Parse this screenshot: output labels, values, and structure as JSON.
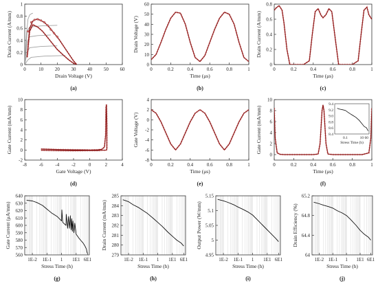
{
  "figure": {
    "panel_labels": [
      "(a)",
      "(b)",
      "(c)",
      "(d)",
      "(e)",
      "(f)",
      "(g)",
      "(h)",
      "(i)",
      "(j)"
    ]
  },
  "colors": {
    "measured": "#8b1a1a",
    "simulated_dots": "#e05a5a",
    "gray_curves": "#a0a0a0",
    "grid": "#d8d8d8"
  },
  "chart_data": [
    {
      "id": "a",
      "type": "line",
      "xlabel": "Drain Voltage (V)",
      "ylabel": "Drain Current (A/mm)",
      "xlim": [
        0,
        60
      ],
      "ylim": [
        0,
        1.0
      ],
      "xticks": [
        0,
        10,
        20,
        30,
        40,
        50,
        60
      ],
      "yticks": [
        0,
        0.2,
        0.4,
        0.6,
        0.8,
        1.0
      ],
      "grid": false,
      "series": [
        {
          "style": "gray",
          "x": [
            0,
            1.5,
            3,
            10,
            20
          ],
          "y": [
            0,
            0.55,
            0.62,
            0.64,
            0.65
          ]
        },
        {
          "style": "gray",
          "x": [
            0,
            1.5,
            3,
            8,
            16
          ],
          "y": [
            0,
            0.38,
            0.46,
            0.48,
            0.49
          ]
        },
        {
          "style": "gray",
          "x": [
            0,
            1.5,
            3,
            10,
            20
          ],
          "y": [
            0,
            0.2,
            0.28,
            0.3,
            0.31
          ]
        },
        {
          "style": "gray",
          "x": [
            0,
            2,
            4,
            12,
            25
          ],
          "y": [
            0,
            0.08,
            0.12,
            0.14,
            0.15
          ]
        },
        {
          "style": "gray",
          "x": [
            0,
            1,
            2,
            3,
            4,
            5
          ],
          "y": [
            0,
            0.5,
            0.75,
            0.82,
            0.84,
            0.85
          ]
        },
        {
          "style": "measured",
          "x": [
            1.5,
            3,
            5,
            7,
            9,
            12,
            15,
            18,
            21,
            24,
            27,
            30,
            32,
            30,
            27,
            24,
            20,
            17,
            14,
            11,
            8,
            5,
            3,
            1.5
          ],
          "y": [
            0.12,
            0.6,
            0.72,
            0.75,
            0.74,
            0.7,
            0.62,
            0.52,
            0.42,
            0.3,
            0.18,
            0.06,
            0.0,
            0.02,
            0.08,
            0.15,
            0.25,
            0.35,
            0.45,
            0.55,
            0.62,
            0.66,
            0.55,
            0.12
          ]
        },
        {
          "style": "dots",
          "x": [
            2,
            4,
            6,
            8,
            10,
            12,
            14,
            16,
            18,
            20
          ],
          "y": [
            0.55,
            0.7,
            0.74,
            0.75,
            0.73,
            0.7,
            0.65,
            0.58,
            0.52,
            0.46
          ]
        }
      ]
    },
    {
      "id": "b",
      "type": "line",
      "xlabel": "Time (μs)",
      "ylabel": "Drain Voltage (V)",
      "xlim": [
        0,
        1.0
      ],
      "ylim": [
        0,
        60
      ],
      "xticks": [
        0,
        0.2,
        0.4,
        0.6,
        0.8,
        1.0
      ],
      "yticks": [
        0,
        10,
        20,
        30,
        40,
        50,
        60
      ],
      "grid": false,
      "series": [
        {
          "style": "measured",
          "x": [
            0,
            0.05,
            0.1,
            0.15,
            0.2,
            0.25,
            0.3,
            0.35,
            0.4,
            0.45,
            0.5,
            0.55,
            0.6,
            0.65,
            0.7,
            0.75,
            0.8,
            0.85,
            0.9,
            0.95,
            1.0
          ],
          "y": [
            5,
            10,
            22,
            35,
            46,
            52,
            51,
            40,
            22,
            7,
            3,
            9,
            22,
            35,
            46,
            52,
            50,
            40,
            22,
            7,
            3
          ]
        }
      ]
    },
    {
      "id": "c",
      "type": "line",
      "xlabel": "Time (μs)",
      "ylabel": "Drain Current (A/mm)",
      "xlim": [
        0,
        1.0
      ],
      "ylim": [
        0,
        0.8
      ],
      "xticks": [
        0,
        0.2,
        0.4,
        0.6,
        0.8,
        1.0
      ],
      "yticks": [
        0,
        0.2,
        0.4,
        0.6,
        0.8
      ],
      "grid": false,
      "series": [
        {
          "style": "measured",
          "x": [
            0,
            0.02,
            0.05,
            0.08,
            0.1,
            0.13,
            0.16,
            0.2,
            0.3,
            0.36,
            0.39,
            0.42,
            0.45,
            0.48,
            0.5,
            0.53,
            0.56,
            0.59,
            0.62,
            0.66,
            0.8,
            0.86,
            0.89,
            0.92,
            0.95,
            0.97,
            1.0
          ],
          "y": [
            0.72,
            0.75,
            0.78,
            0.72,
            0.55,
            0.2,
            0.0,
            0.0,
            0.0,
            0.05,
            0.4,
            0.7,
            0.74,
            0.65,
            0.62,
            0.66,
            0.74,
            0.7,
            0.4,
            0.0,
            0.0,
            0.05,
            0.4,
            0.72,
            0.76,
            0.66,
            0.6
          ]
        }
      ]
    },
    {
      "id": "d",
      "type": "line",
      "xlabel": "Gate Voltage (V)",
      "ylabel": "Gate Current (mA/mm)",
      "xlim": [
        -8,
        4
      ],
      "ylim": [
        -2,
        10
      ],
      "xticks": [
        -8,
        -6,
        -4,
        -2,
        0,
        2,
        4
      ],
      "yticks": [
        -2,
        0,
        2,
        4,
        6,
        8,
        10
      ],
      "grid": false,
      "series": [
        {
          "style": "measured",
          "x": [
            -6,
            -4,
            -2,
            0,
            1,
            1.5,
            1.8,
            1.95,
            2.0,
            2.05,
            2.1,
            2.1,
            2.05,
            1.9,
            1.5,
            1.0,
            0,
            -2,
            -4,
            -6
          ],
          "y": [
            0.2,
            0.1,
            0.05,
            0.0,
            0.05,
            0.15,
            0.6,
            3,
            8.5,
            9,
            5,
            0.2,
            0.0,
            -0.05,
            -0.05,
            -0.1,
            -0.1,
            -0.15,
            -0.1,
            -0.05
          ]
        }
      ]
    },
    {
      "id": "e",
      "type": "line",
      "xlabel": "Time (μs)",
      "ylabel": "Gate Voltage (V)",
      "xlim": [
        0,
        1.0
      ],
      "ylim": [
        -8,
        4
      ],
      "xticks": [
        0,
        0.2,
        0.4,
        0.6,
        0.8,
        1.0
      ],
      "yticks": [
        -8,
        -6,
        -4,
        -2,
        0,
        2,
        4
      ],
      "grid": false,
      "series": [
        {
          "style": "measured",
          "x": [
            0,
            0.05,
            0.1,
            0.15,
            0.2,
            0.25,
            0.3,
            0.35,
            0.4,
            0.45,
            0.5,
            0.55,
            0.6,
            0.65,
            0.7,
            0.75,
            0.8,
            0.85,
            0.9,
            0.95,
            1.0
          ],
          "y": [
            2,
            1.3,
            -0.4,
            -2.6,
            -4.8,
            -6,
            -4.8,
            -2.6,
            -0.4,
            1.3,
            2,
            1.3,
            -0.4,
            -2.6,
            -4.8,
            -6,
            -4.8,
            -2.6,
            -0.4,
            1.3,
            2
          ]
        }
      ]
    },
    {
      "id": "f",
      "type": "line",
      "xlabel": "Time (μs)",
      "ylabel": "Gate Current (mA/mm)",
      "xlim": [
        0,
        1.0
      ],
      "ylim": [
        -1,
        10
      ],
      "xticks": [
        0,
        0.2,
        0.4,
        0.6,
        0.8,
        1.0
      ],
      "yticks": [
        0,
        2,
        4,
        6,
        8,
        10
      ],
      "grid": false,
      "series": [
        {
          "style": "measured",
          "x": [
            0,
            0.01,
            0.03,
            0.06,
            0.1,
            0.2,
            0.3,
            0.4,
            0.45,
            0.47,
            0.49,
            0.5,
            0.51,
            0.53,
            0.55,
            0.6,
            0.7,
            0.8,
            0.9,
            0.97,
            0.99,
            1.0
          ],
          "y": [
            8.5,
            3,
            0.3,
            0.05,
            0.0,
            0.0,
            0.0,
            0.0,
            0.1,
            2,
            8,
            9,
            8,
            2,
            0.1,
            0.0,
            0.0,
            0.0,
            0.0,
            0.3,
            3,
            8.5
          ]
        }
      ],
      "inset": {
        "xlabel": "Stress Time (h)",
        "xticks": [
          "0.1",
          "10 60"
        ],
        "yticks": [
          8.4,
          8.6,
          8.8,
          9.0,
          9.2,
          9.4
        ],
        "ylim": [
          8.4,
          9.4
        ],
        "x": [
          0.01,
          0.02,
          0.05,
          0.1,
          0.2,
          0.5,
          1,
          2,
          5,
          10,
          20,
          40,
          60
        ],
        "y": [
          9.25,
          9.22,
          9.2,
          9.18,
          9.12,
          9.05,
          9.0,
          8.95,
          8.85,
          8.75,
          8.65,
          8.6,
          8.5
        ]
      }
    },
    {
      "id": "g",
      "type": "line",
      "xscale": "log",
      "xlabel": "Stress Time (h)",
      "ylabel": "Gate Current (μA/mm)",
      "xlim": [
        0.003,
        80
      ],
      "ylim": [
        560,
        640
      ],
      "xticks": [
        0.01,
        0.1,
        1,
        10,
        60
      ],
      "xticklabels": [
        "1E-2",
        "1E-1",
        "1",
        "1E1",
        "6E1"
      ],
      "yticks": [
        560,
        570,
        580,
        590,
        600,
        610,
        620,
        630,
        640
      ],
      "grid": "vertical-log",
      "series": [
        {
          "style": "black",
          "x": [
            0.004,
            0.01,
            0.02,
            0.05,
            0.1,
            0.2,
            0.5,
            0.8,
            1,
            1.05,
            1.2,
            2,
            2.1,
            2.6,
            3,
            3.5,
            4,
            4.5,
            5,
            5.5,
            6,
            7,
            8,
            10,
            15,
            20,
            30,
            40,
            50,
            55,
            60
          ],
          "y": [
            634,
            633,
            631,
            627,
            622,
            617,
            612,
            608,
            606,
            621,
            604,
            600,
            615,
            596,
            612,
            596,
            613,
            594,
            609,
            592,
            606,
            590,
            603,
            588,
            583,
            580,
            576,
            572,
            568,
            564,
            562
          ]
        }
      ]
    },
    {
      "id": "h",
      "type": "line",
      "xscale": "log",
      "xlabel": "Stress Time (h)",
      "ylabel": "Drain Current (mA/mm)",
      "xlim": [
        0.003,
        80
      ],
      "ylim": [
        279,
        285
      ],
      "xticks": [
        0.01,
        0.1,
        1,
        10,
        60
      ],
      "xticklabels": [
        "1E-2",
        "1E-1",
        "1",
        "1E1",
        "6E1"
      ],
      "yticks": [
        279,
        280,
        281,
        282,
        283,
        284,
        285
      ],
      "grid": "vertical-log",
      "series": [
        {
          "style": "black",
          "x": [
            0.004,
            0.01,
            0.02,
            0.05,
            0.1,
            0.2,
            0.5,
            1,
            2,
            5,
            10,
            20,
            40,
            60
          ],
          "y": [
            284.6,
            284.4,
            284.1,
            283.8,
            283.5,
            283.2,
            282.7,
            282.3,
            281.9,
            281.3,
            280.9,
            280.5,
            280.2,
            279.9
          ]
        }
      ]
    },
    {
      "id": "i",
      "type": "line",
      "xscale": "log",
      "xlabel": "Stress Time (h)",
      "ylabel": "Output Power (W/mm)",
      "xlim": [
        0.003,
        80
      ],
      "ylim": [
        4.95,
        5.15
      ],
      "xticks": [
        0.01,
        0.1,
        1,
        10,
        60
      ],
      "xticklabels": [
        "1E-2",
        "1E-1",
        "1",
        "1E1",
        "6E1"
      ],
      "yticks": [
        4.95,
        5.0,
        5.05,
        5.1,
        5.15
      ],
      "grid": "vertical-log",
      "series": [
        {
          "style": "black",
          "x": [
            0.004,
            0.01,
            0.02,
            0.05,
            0.1,
            0.2,
            0.5,
            1,
            2,
            5,
            10,
            20,
            40,
            60
          ],
          "y": [
            5.138,
            5.133,
            5.128,
            5.12,
            5.112,
            5.105,
            5.095,
            5.085,
            5.07,
            5.05,
            5.035,
            5.02,
            5.005,
            4.995
          ]
        }
      ]
    },
    {
      "id": "j",
      "type": "line",
      "xscale": "log",
      "xlabel": "Stress Time (h)",
      "ylabel": "Drain Efficiency (%)",
      "xlim": [
        0.003,
        80
      ],
      "ylim": [
        64.0,
        65.2
      ],
      "xticks": [
        0.01,
        0.1,
        1,
        10,
        60
      ],
      "xticklabels": [
        "1E-2",
        "1E-1",
        "1",
        "1E1",
        "6E1"
      ],
      "yticks": [
        64.0,
        64.4,
        64.8,
        65.2
      ],
      "grid": "vertical-log",
      "series": [
        {
          "style": "black",
          "x": [
            0.004,
            0.01,
            0.02,
            0.05,
            0.1,
            0.2,
            0.5,
            1,
            2,
            5,
            10,
            20,
            40,
            60
          ],
          "y": [
            65.07,
            65.04,
            65.01,
            64.98,
            64.95,
            64.9,
            64.85,
            64.8,
            64.72,
            64.6,
            64.5,
            64.42,
            64.36,
            64.3
          ]
        }
      ]
    }
  ]
}
